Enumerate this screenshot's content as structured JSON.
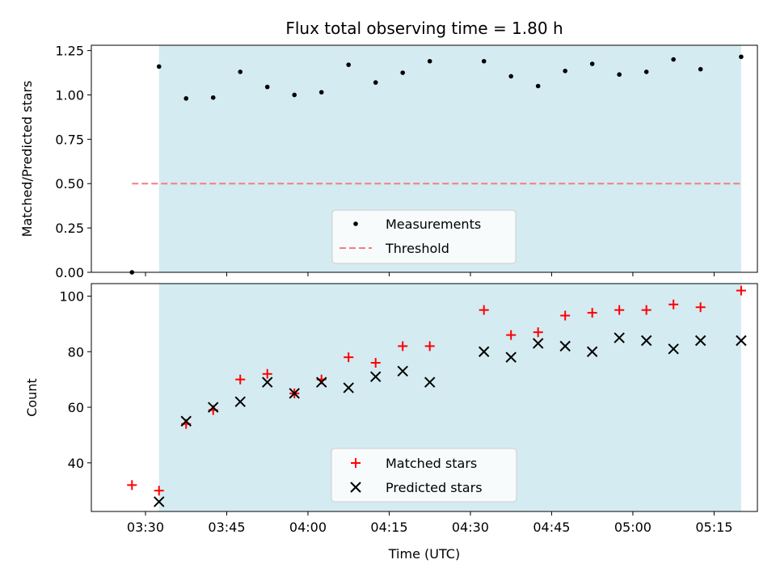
{
  "title": "Flux total observing time = 1.80 h",
  "colors": {
    "shade": "#d4ebf1",
    "measurement": "#000000",
    "threshold": "#f08080",
    "matched": "#ff0000",
    "predicted": "#000000"
  },
  "chart_data": [
    {
      "type": "scatter",
      "ylabel": "Matched/Predicted stars",
      "xlim": [
        "03:20",
        "05:23"
      ],
      "ylim": [
        0,
        1.28
      ],
      "yticks": [
        0.0,
        0.25,
        0.5,
        0.75,
        1.0,
        1.25
      ],
      "ytick_labels": [
        "0.00",
        "0.25",
        "0.50",
        "0.75",
        "1.00",
        "1.25"
      ],
      "shaded_span": [
        "03:32.5",
        "05:20"
      ],
      "threshold_line": {
        "y": 0.5,
        "from": "03:27.5",
        "to": "05:20"
      },
      "legend": {
        "placement": "bottom-center",
        "entries": [
          "Measurements",
          "Threshold"
        ]
      },
      "series": [
        {
          "name": "Measurements",
          "x": [
            "03:27.5",
            "03:32.5",
            "03:37.5",
            "03:42.5",
            "03:47.5",
            "03:52.5",
            "03:57.5",
            "04:02.5",
            "04:07.5",
            "04:12.5",
            "04:17.5",
            "04:22.5",
            "04:32.5",
            "04:37.5",
            "04:42.5",
            "04:47.5",
            "04:52.5",
            "04:57.5",
            "05:02.5",
            "05:07.5",
            "05:12.5",
            "05:20"
          ],
          "y": [
            0.0,
            1.16,
            0.98,
            0.985,
            1.13,
            1.045,
            1.0,
            1.015,
            1.17,
            1.07,
            1.125,
            1.19,
            1.19,
            1.105,
            1.05,
            1.135,
            1.175,
            1.115,
            1.13,
            1.2,
            1.145,
            1.215
          ]
        }
      ]
    },
    {
      "type": "scatter",
      "xlabel": "Time (UTC)",
      "ylabel": "Count",
      "xlim": [
        "03:20",
        "05:23"
      ],
      "ylim": [
        22.5,
        104.5
      ],
      "xticks": [
        "03:30",
        "03:45",
        "04:00",
        "04:15",
        "04:30",
        "04:45",
        "05:00",
        "05:15"
      ],
      "yticks": [
        40,
        60,
        80,
        100
      ],
      "ytick_labels": [
        "40",
        "60",
        "80",
        "100"
      ],
      "shaded_span": [
        "03:32.5",
        "05:20"
      ],
      "legend": {
        "placement": "bottom-center",
        "entries": [
          "Matched stars",
          "Predicted stars"
        ]
      },
      "series": [
        {
          "name": "Matched stars",
          "x": [
            "03:27.5",
            "03:32.5",
            "03:37.5",
            "03:42.5",
            "03:47.5",
            "03:52.5",
            "03:57.5",
            "04:02.5",
            "04:07.5",
            "04:12.5",
            "04:17.5",
            "04:22.5",
            "04:32.5",
            "04:37.5",
            "04:42.5",
            "04:47.5",
            "04:52.5",
            "04:57.5",
            "05:02.5",
            "05:07.5",
            "05:12.5",
            "05:20"
          ],
          "y": [
            32,
            30,
            54,
            59,
            70,
            72,
            65,
            70,
            78,
            76,
            82,
            82,
            95,
            86,
            87,
            93,
            94,
            95,
            95,
            97,
            96,
            102
          ]
        },
        {
          "name": "Predicted stars",
          "x": [
            "03:32.5",
            "03:37.5",
            "03:42.5",
            "03:47.5",
            "03:52.5",
            "03:57.5",
            "04:02.5",
            "04:07.5",
            "04:12.5",
            "04:17.5",
            "04:22.5",
            "04:32.5",
            "04:37.5",
            "04:42.5",
            "04:47.5",
            "04:52.5",
            "04:57.5",
            "05:02.5",
            "05:07.5",
            "05:12.5",
            "05:20"
          ],
          "y": [
            26,
            55,
            60,
            62,
            69,
            65,
            69,
            67,
            71,
            73,
            69,
            80,
            78,
            83,
            82,
            80,
            85,
            84,
            81,
            84,
            84
          ]
        }
      ]
    }
  ]
}
